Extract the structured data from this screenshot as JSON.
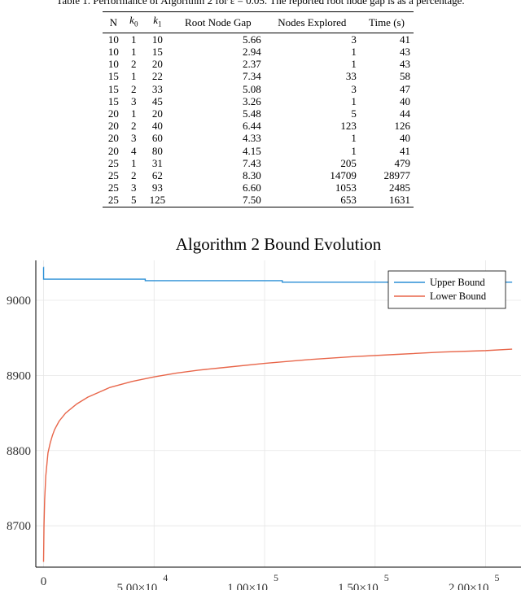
{
  "table": {
    "caption": "Table 1. Performance of Algorithm 2 for ε = 0.05. The reported root node gap is as a percentage.",
    "headers": {
      "n": "N",
      "k0_base": "k",
      "k0_sub": "0",
      "k1_base": "k",
      "k1_sub": "1",
      "gap": "Root Node Gap",
      "nodes": "Nodes Explored",
      "time": "Time (s)"
    },
    "rows": [
      [
        "10",
        "1",
        "10",
        "5.66",
        "3",
        "41"
      ],
      [
        "10",
        "1",
        "15",
        "2.94",
        "1",
        "43"
      ],
      [
        "10",
        "2",
        "20",
        "2.37",
        "1",
        "43"
      ],
      [
        "15",
        "1",
        "22",
        "7.34",
        "33",
        "58"
      ],
      [
        "15",
        "2",
        "33",
        "5.08",
        "3",
        "47"
      ],
      [
        "15",
        "3",
        "45",
        "3.26",
        "1",
        "40"
      ],
      [
        "20",
        "1",
        "20",
        "5.48",
        "5",
        "44"
      ],
      [
        "20",
        "2",
        "40",
        "6.44",
        "123",
        "126"
      ],
      [
        "20",
        "3",
        "60",
        "4.33",
        "1",
        "40"
      ],
      [
        "20",
        "4",
        "80",
        "4.15",
        "1",
        "41"
      ],
      [
        "25",
        "1",
        "31",
        "7.43",
        "205",
        "479"
      ],
      [
        "25",
        "2",
        "62",
        "8.30",
        "14709",
        "28977"
      ],
      [
        "25",
        "3",
        "93",
        "6.60",
        "1053",
        "2485"
      ],
      [
        "25",
        "5",
        "125",
        "7.50",
        "653",
        "1631"
      ]
    ]
  },
  "chart_data": {
    "type": "line",
    "title": "Algorithm 2 Bound Evolution",
    "xlabel": "",
    "ylabel": "",
    "xlim": [
      -3500,
      216000
    ],
    "ylim": [
      8645,
      9053
    ],
    "x_ticks": [
      {
        "value": 0,
        "label": "0"
      },
      {
        "value": 50000,
        "label": "5.00×10",
        "exp": "4"
      },
      {
        "value": 100000,
        "label": "1.00×10",
        "exp": "5"
      },
      {
        "value": 150000,
        "label": "1.50×10",
        "exp": "5"
      },
      {
        "value": 200000,
        "label": "2.00×10",
        "exp": "5"
      }
    ],
    "y_ticks": [
      {
        "value": 8700,
        "label": "8700"
      },
      {
        "value": 8800,
        "label": "8800"
      },
      {
        "value": 8900,
        "label": "8900"
      },
      {
        "value": 9000,
        "label": "9000"
      }
    ],
    "grid": true,
    "legend_position": "top-right",
    "series": [
      {
        "name": "Upper Bound",
        "color": "#2b8fd6",
        "points": [
          [
            0,
            9044
          ],
          [
            10,
            9044
          ],
          [
            10,
            9028
          ],
          [
            46000,
            9028
          ],
          [
            46000,
            9026
          ],
          [
            108000,
            9026
          ],
          [
            108000,
            9024
          ],
          [
            212000,
            9024
          ]
        ]
      },
      {
        "name": "Lower Bound",
        "color": "#e8664a",
        "points": [
          [
            0,
            8652
          ],
          [
            200,
            8700
          ],
          [
            500,
            8735
          ],
          [
            1000,
            8766
          ],
          [
            2000,
            8797
          ],
          [
            3000,
            8810
          ],
          [
            4000,
            8820
          ],
          [
            5000,
            8828
          ],
          [
            7000,
            8839
          ],
          [
            10000,
            8850
          ],
          [
            15000,
            8862
          ],
          [
            20000,
            8871
          ],
          [
            30000,
            8884
          ],
          [
            40000,
            8892
          ],
          [
            50000,
            8898
          ],
          [
            60000,
            8903
          ],
          [
            70000,
            8907
          ],
          [
            80000,
            8910
          ],
          [
            100000,
            8916
          ],
          [
            120000,
            8921
          ],
          [
            140000,
            8925
          ],
          [
            160000,
            8928
          ],
          [
            180000,
            8931
          ],
          [
            200000,
            8933
          ],
          [
            212000,
            8935
          ]
        ]
      }
    ]
  }
}
